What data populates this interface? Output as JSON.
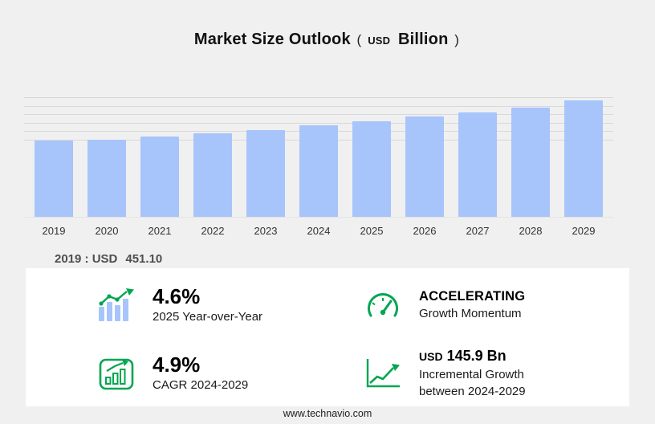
{
  "title": {
    "main": "Market Size Outlook",
    "open": "(",
    "unit_small": "USD",
    "unit_big": "Billion",
    "close": ")"
  },
  "chart_data": {
    "type": "bar",
    "title": "Market Size Outlook (USD Billion)",
    "categories": [
      "2019",
      "2020",
      "2021",
      "2022",
      "2023",
      "2024",
      "2025",
      "2026",
      "2027",
      "2028",
      "2029"
    ],
    "values": [
      451.1,
      457.0,
      474.0,
      495.0,
      512.0,
      539.8,
      564.6,
      590.3,
      617.3,
      645.5,
      685.7
    ],
    "unit": "USD Billion",
    "ylim": [
      0,
      720
    ],
    "gridline_values": [
      450,
      500,
      550,
      600,
      650,
      700
    ],
    "bar_color": "#a7c5fb",
    "legend": "none",
    "grid": "horizontal"
  },
  "annotation": {
    "label": "2019 : USD",
    "value": "451.10"
  },
  "stats": [
    {
      "icon": "yoy-trend-icon",
      "value": "4.6%",
      "label": "2025 Year-over-Year"
    },
    {
      "icon": "speedometer-icon",
      "value": "ACCELERATING",
      "label": "Growth Momentum"
    },
    {
      "icon": "cagr-chart-icon",
      "value": "4.9%",
      "label": "CAGR 2024-2029"
    },
    {
      "icon": "incremental-growth-icon",
      "value_prefix": "USD",
      "value": "145.9 Bn",
      "label1": "Incremental Growth",
      "label2": "between 2024-2029"
    }
  ],
  "footer": {
    "url": "www.technavio.com"
  },
  "colors": {
    "accent_green": "#00a651",
    "bar_blue": "#a7c5fb",
    "background": "#f0f0f0",
    "panel": "#ffffff"
  }
}
